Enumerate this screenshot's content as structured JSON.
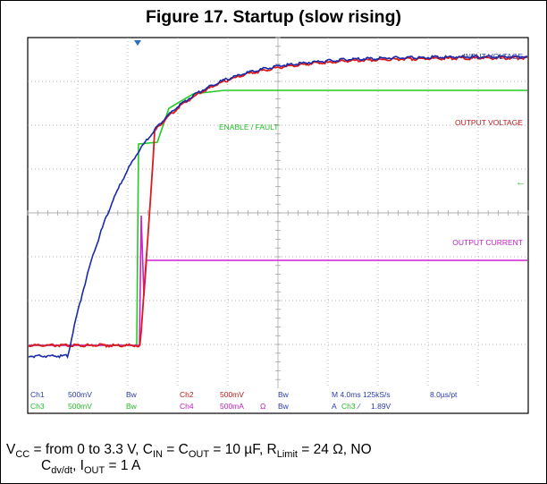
{
  "figure": {
    "title": "Figure 17. Startup (slow rising)",
    "trace_labels": {
      "input": "INPUT VOLTAGE",
      "output": "OUTPUT VOLTAGE",
      "enable": "ENABLE / FAULT",
      "current": "OUTPUT CURRENT"
    },
    "readout": {
      "row1": [
        "Ch1",
        "500mV",
        "Bw",
        "Ch2",
        "500mV",
        "Bw",
        "M 4.0ms 125kS/s",
        "8.0µs/pt"
      ],
      "row2": [
        "Ch3",
        "500mV",
        "Bw",
        "Ch4",
        "500mA",
        "Ω",
        "Bw",
        "A",
        "Ch3",
        "⁄",
        "1.89V"
      ]
    },
    "caption": {
      "line1": [
        {
          "text": "V"
        },
        {
          "text": "CC",
          "sub": true
        },
        {
          "text": " = from 0 to 3.3 V, C"
        },
        {
          "text": "IN",
          "sub": true
        },
        {
          "text": " = C"
        },
        {
          "text": "OUT",
          "sub": true
        },
        {
          "text": " = 10 µF, R"
        },
        {
          "text": "Limit",
          "sub": true
        },
        {
          "text": " = 24 Ω, NO"
        }
      ],
      "line2": [
        {
          "text": "C"
        },
        {
          "text": "dv/dt",
          "sub": true
        },
        {
          "text": ", I"
        },
        {
          "text": "OUT",
          "sub": true
        },
        {
          "text": " = 1 A"
        }
      ]
    }
  }
}
